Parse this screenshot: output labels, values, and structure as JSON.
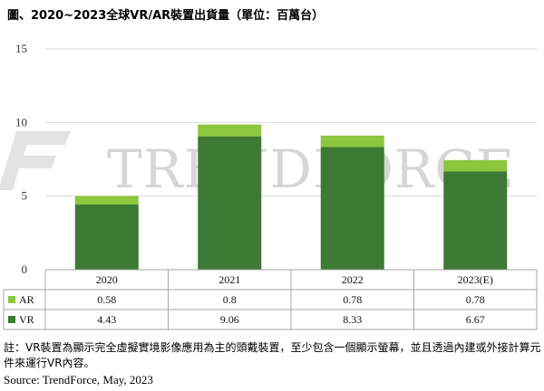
{
  "title": "圖、2020~2023全球VR/AR裝置出貨量（單位：百萬台）",
  "watermark": "TRENDFORCE",
  "note": "註：VR裝置為顯示完全虛擬實境影像應用為主的頭戴裝置，至少包含一個顯示螢幕，並且透過內建或外接計算元件來運行VR內容。",
  "source": "Source: TrendForce, May, 2023",
  "colors": {
    "AR": "#8dc63f",
    "VR": "#3d7a34"
  },
  "chart_data": {
    "type": "bar",
    "stacked": true,
    "categories": [
      "2020",
      "2021",
      "2022",
      "2023(E)"
    ],
    "series": [
      {
        "name": "VR",
        "values": [
          4.43,
          9.06,
          8.33,
          6.67
        ],
        "display": [
          "4.43",
          "9.06",
          "8.33",
          "6.67"
        ]
      },
      {
        "name": "AR",
        "values": [
          0.58,
          0.8,
          0.78,
          0.78
        ],
        "display": [
          "0.58",
          "0.8",
          "0.78",
          "0.78"
        ]
      }
    ],
    "ylim": [
      0,
      15
    ],
    "yticks": [
      0,
      5,
      10,
      15
    ],
    "gridlines": true,
    "legend": "data-table-left"
  }
}
